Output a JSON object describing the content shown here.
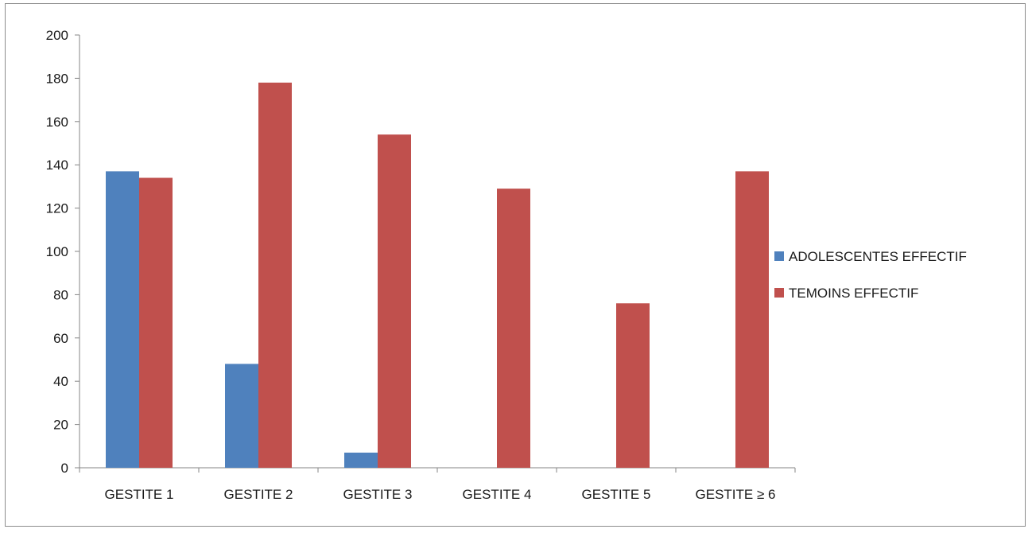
{
  "chart_data": {
    "type": "bar",
    "title": "",
    "xlabel": "",
    "ylabel": "",
    "categories": [
      "GESTITE 1",
      "GESTITE 2",
      "GESTITE 3",
      "GESTITE 4",
      "GESTITE 5",
      "GESTITE ≥ 6"
    ],
    "series": [
      {
        "name": "ADOLESCENTES EFFECTIF",
        "color": "#4f81bd",
        "values": [
          137,
          48,
          7,
          0,
          0,
          0
        ]
      },
      {
        "name": "TEMOINS EFFECTIF",
        "color": "#c0504d",
        "values": [
          134,
          178,
          154,
          129,
          76,
          137
        ]
      }
    ],
    "ylim": [
      0,
      200
    ],
    "yticks": [
      0,
      20,
      40,
      60,
      80,
      100,
      120,
      140,
      160,
      180,
      200
    ],
    "grid": false,
    "legend_position": "right"
  }
}
